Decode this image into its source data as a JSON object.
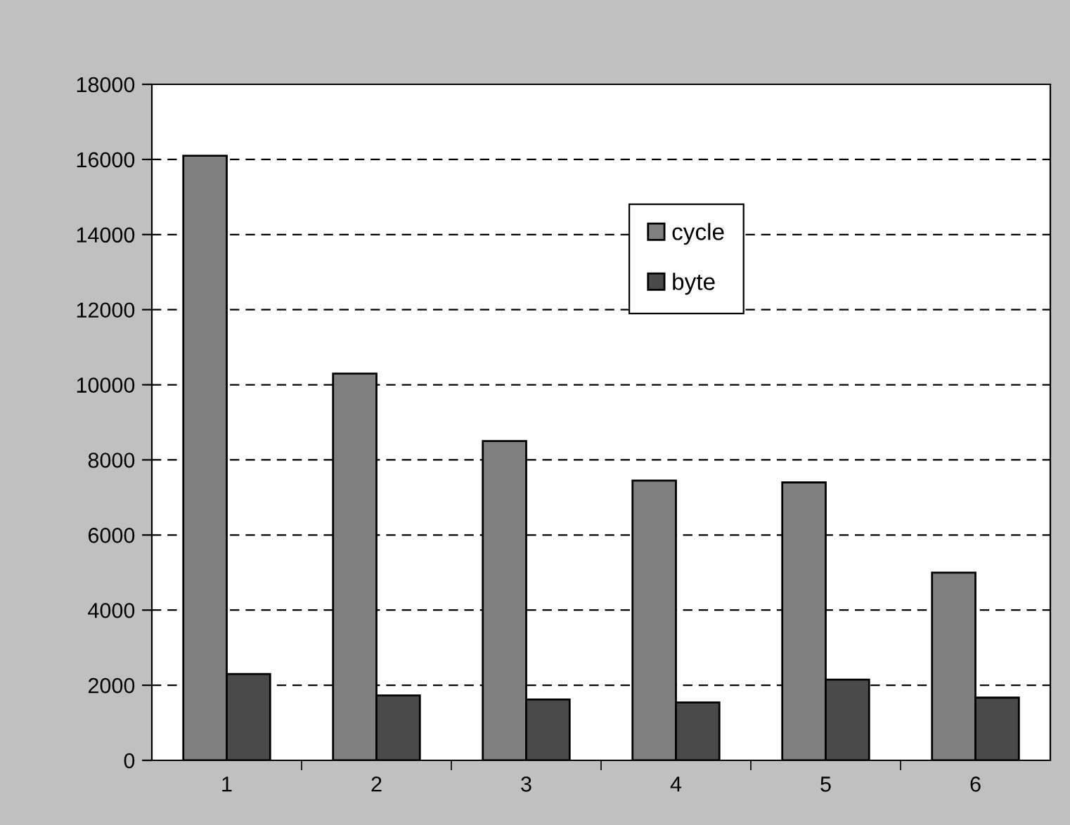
{
  "chart_data": {
    "type": "bar",
    "categories": [
      "1",
      "2",
      "3",
      "4",
      "5",
      "6"
    ],
    "series": [
      {
        "name": "cycle",
        "color": "#808080",
        "values": [
          16100,
          10300,
          8500,
          7450,
          7400,
          5000
        ]
      },
      {
        "name": "byte",
        "color": "#4a4a4a",
        "values": [
          2300,
          1730,
          1620,
          1540,
          2150,
          1670
        ]
      }
    ],
    "ylim": [
      0,
      18000
    ],
    "yticks": [
      0,
      2000,
      4000,
      6000,
      8000,
      10000,
      12000,
      14000,
      16000,
      18000
    ],
    "grid": "y",
    "legend": "top"
  }
}
